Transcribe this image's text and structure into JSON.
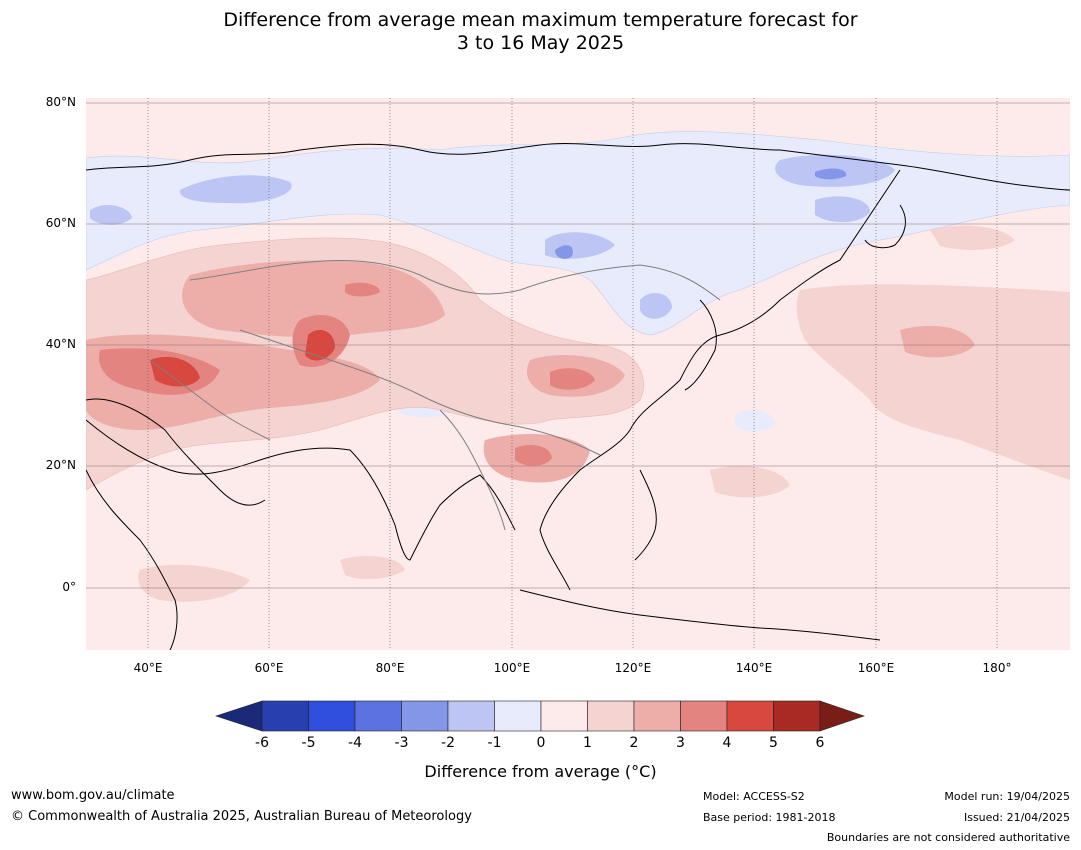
{
  "title_line1": "Difference from average mean maximum temperature forecast for",
  "title_line2": "3 to 16 May 2025",
  "lat_labels": [
    "80°N",
    "60°N",
    "40°N",
    "20°N",
    "0°"
  ],
  "lon_labels": [
    "40°E",
    "60°E",
    "80°E",
    "100°E",
    "120°E",
    "140°E",
    "160°E",
    "180°"
  ],
  "colorbar": {
    "ticks": [
      "-6",
      "-5",
      "-4",
      "-3",
      "-2",
      "-1",
      "0",
      "1",
      "2",
      "3",
      "4",
      "5",
      "6"
    ],
    "colors": [
      "#1b2a78",
      "#283fb0",
      "#304fdc",
      "#5b72e0",
      "#8496e8",
      "#bcc5f3",
      "#e8ebfb",
      "#fcebea",
      "#f5d3d1",
      "#edaeaa",
      "#e48480",
      "#d8483f",
      "#a92a22",
      "#7a1d17"
    ],
    "label": "Difference from average (°C)"
  },
  "footer": {
    "url": "www.bom.gov.au/climate",
    "copyright": "© Commonwealth of Australia 2025, Australian Bureau of Meteorology",
    "model": "Model: ACCESS-S2",
    "base_period": "Base period: 1981-2018",
    "model_run": "Model run: 19/04/2025",
    "issued": "Issued: 21/04/2025",
    "disclaimer": "Boundaries are not considered authoritative"
  }
}
